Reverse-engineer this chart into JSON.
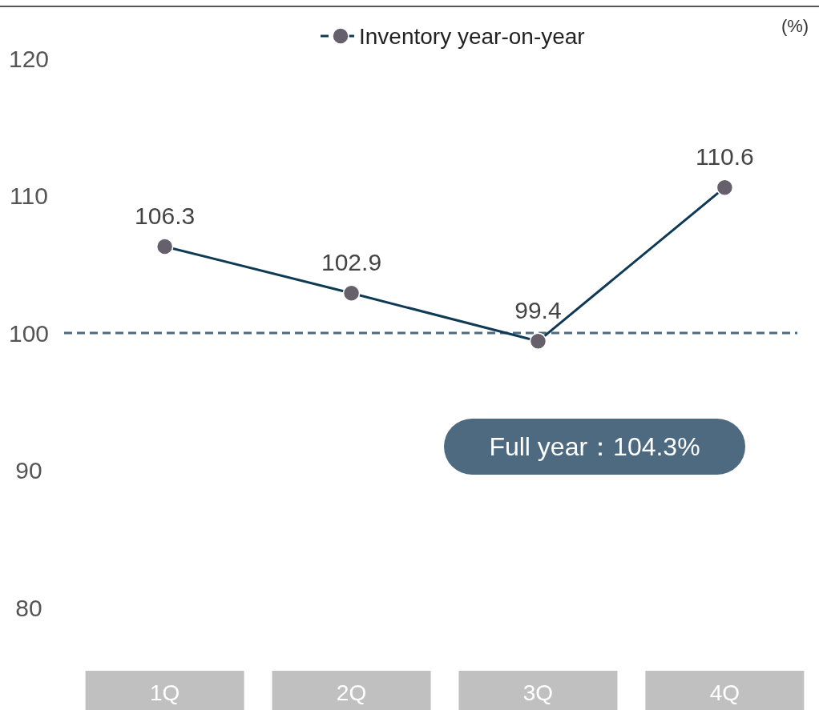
{
  "chart_data": {
    "type": "line",
    "categories": [
      "1Q",
      "2Q",
      "3Q",
      "4Q"
    ],
    "series": [
      {
        "name": "Inventory year-on-year",
        "color": "#0f3a55",
        "values": [
          106.3,
          102.9,
          99.4,
          110.6
        ]
      }
    ],
    "ylim": [
      80,
      120
    ],
    "yticks": [
      80,
      90,
      100,
      110,
      120
    ],
    "ylabel": "(%)",
    "legend": "top",
    "marker": "circle",
    "line_style": "solid",
    "data_labels": true,
    "grid": false,
    "ref_lines": [
      {
        "axis": "y",
        "value": 100,
        "color": "#4d6a80",
        "line_style": "dashed"
      }
    ],
    "annotations": [
      "Full year：104.3%"
    ]
  }
}
